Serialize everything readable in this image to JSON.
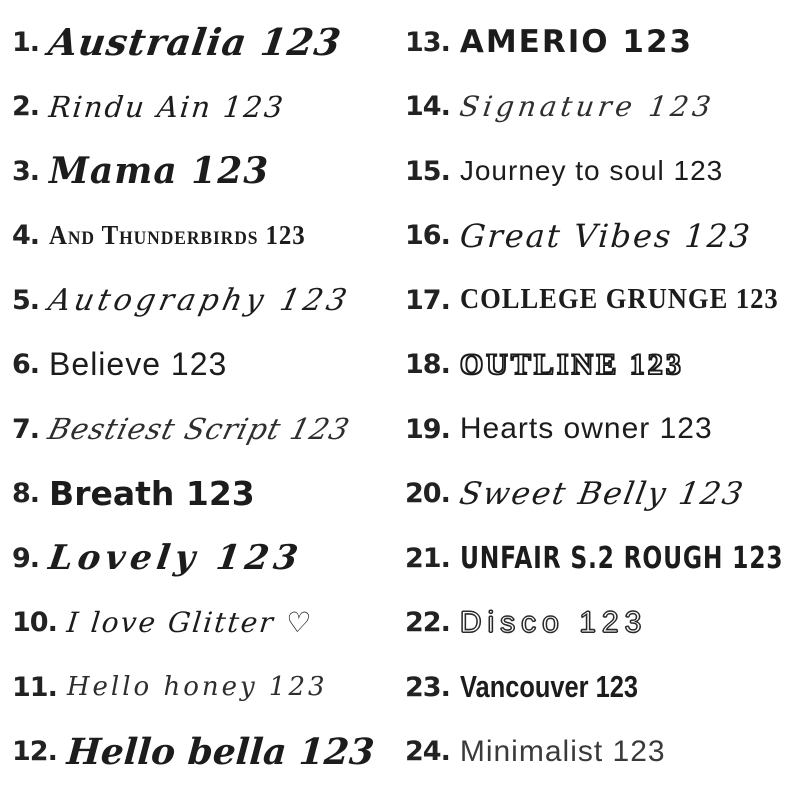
{
  "colors": {
    "background": "#ffffff",
    "ink": "#1c1c1c"
  },
  "fonts": [
    {
      "number": "1.",
      "name": "Australia",
      "sample": "Australia 123"
    },
    {
      "number": "2.",
      "name": "Rindu Ain",
      "sample": "Rindu Ain 123"
    },
    {
      "number": "3.",
      "name": "Mama",
      "sample": "Mama 123"
    },
    {
      "number": "4.",
      "name": "And Thunderbirds",
      "sample": "And Thunderbirds 123"
    },
    {
      "number": "5.",
      "name": "Autography",
      "sample": "Autography 123"
    },
    {
      "number": "6.",
      "name": "Believe",
      "sample": "Believe 123"
    },
    {
      "number": "7.",
      "name": "Bestiest Script",
      "sample": "Bestiest Script 123"
    },
    {
      "number": "8.",
      "name": "Breath",
      "sample": "Breath 123"
    },
    {
      "number": "9.",
      "name": "Lovely",
      "sample": "Lovely 123"
    },
    {
      "number": "10.",
      "name": "I love Glitter",
      "sample": "I love Glitter ♡"
    },
    {
      "number": "11.",
      "name": "Hello honey",
      "sample": "Hello honey 123"
    },
    {
      "number": "12.",
      "name": "Hello bella",
      "sample": "Hello bella 123"
    },
    {
      "number": "13.",
      "name": "Amerio",
      "sample": "AMERIO 123"
    },
    {
      "number": "14.",
      "name": "Signature",
      "sample": "Signature 123"
    },
    {
      "number": "15.",
      "name": "Journey to soul",
      "sample": "Journey to soul 123"
    },
    {
      "number": "16.",
      "name": "Great Vibes",
      "sample": "Great Vibes 123"
    },
    {
      "number": "17.",
      "name": "College Grunge",
      "sample": "COLLEGE GRUNGE 123"
    },
    {
      "number": "18.",
      "name": "Outline",
      "sample": "OUTLINE 123"
    },
    {
      "number": "19.",
      "name": "Hearts owner",
      "sample": "Hearts owner 123"
    },
    {
      "number": "20.",
      "name": "Sweet Belly",
      "sample": "Sweet Belly 123"
    },
    {
      "number": "21.",
      "name": "Unfair S.2 Rough",
      "sample": "UNFAIR S.2 ROUGH 123"
    },
    {
      "number": "22.",
      "name": "Disco",
      "sample": "Disco  123"
    },
    {
      "number": "23.",
      "name": "Vancouver",
      "sample": "Vancouver 123"
    },
    {
      "number": "24.",
      "name": "Minimalist",
      "sample": "Minimalist 123"
    }
  ]
}
